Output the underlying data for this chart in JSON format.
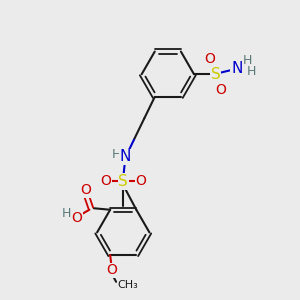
{
  "background_color": "#ebebeb",
  "bond_color": "#1a1a1a",
  "nitrogen_color": "#0000cc",
  "oxygen_color": "#cc0000",
  "sulfur_color": "#cccc00",
  "hydrogen_color": "#5a7a7a",
  "figsize": [
    3.0,
    3.0
  ],
  "dpi": 100,
  "xlim": [
    0,
    10
  ],
  "ylim": [
    0,
    10
  ]
}
